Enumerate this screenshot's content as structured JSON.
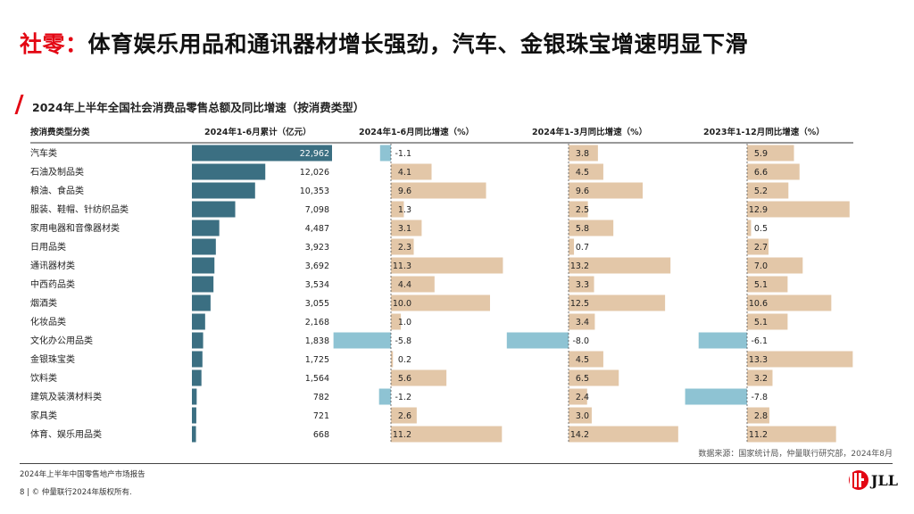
{
  "headline": {
    "accent": "社零：",
    "rest": "体育娱乐用品和通讯器材增长强劲，汽车、金银珠宝增速明显下滑"
  },
  "subtitle": "2024年上半年全国社会消费品零售总额及同比增速（按消费类型）",
  "source": "数据来源：国家统计局，仲量联行研究部，2024年8月",
  "footer": {
    "report_name": "2024年上半年中国零售地产市场报告",
    "copyright": "8 | © 仲量联行2024年版权所有.",
    "logo_text": "JLL"
  },
  "colors": {
    "accent_red": "#e30613",
    "bar_total": "#3b6f82",
    "bar_positive": "#e3c7a8",
    "bar_negative": "#8ec3d3"
  },
  "chart_data": {
    "type": "table",
    "headers": {
      "category": "按消费类型分类",
      "total": "2024年1-6月累计（亿元）",
      "h1_growth": "2024年1-6月同比增速（%）",
      "q1_growth": "2024年1-3月同比增速（%）",
      "fy2023_growth": "2023年1-12月同比增速（%）"
    },
    "categories": [
      "汽车类",
      "石油及制品类",
      "粮油、食品类",
      "服装、鞋帽、针纺织品类",
      "家用电器和音像器材类",
      "日用品类",
      "通讯器材类",
      "中西药品类",
      "烟酒类",
      "化妆品类",
      "文化办公用品类",
      "金银珠宝类",
      "饮料类",
      "建筑及装潢材料类",
      "家具类",
      "体育、娱乐用品类"
    ],
    "total_2024H1": [
      22962,
      12026,
      10353,
      7098,
      4487,
      3923,
      3692,
      3534,
      3055,
      2168,
      1838,
      1725,
      1564,
      782,
      721,
      668
    ],
    "total_labels": [
      "22,962",
      "12,026",
      "10,353",
      "7,098",
      "4,487",
      "3,923",
      "3,692",
      "3,534",
      "3,055",
      "2,168",
      "1,838",
      "1,725",
      "1,564",
      "782",
      "721",
      "668"
    ],
    "growth_2024H1": [
      -1.1,
      4.1,
      9.6,
      1.3,
      3.1,
      2.3,
      11.3,
      4.4,
      10.0,
      1.0,
      -5.8,
      0.2,
      5.6,
      -1.2,
      2.6,
      11.2
    ],
    "growth_2024Q1": [
      3.8,
      4.5,
      9.6,
      2.5,
      5.8,
      0.7,
      13.2,
      3.3,
      12.5,
      3.4,
      -8.0,
      4.5,
      6.5,
      2.4,
      3.0,
      14.2
    ],
    "growth_2023": [
      5.9,
      6.6,
      5.2,
      12.9,
      0.5,
      2.7,
      7.0,
      5.1,
      10.6,
      5.1,
      -6.1,
      13.3,
      3.2,
      -7.8,
      2.8,
      11.2
    ]
  }
}
